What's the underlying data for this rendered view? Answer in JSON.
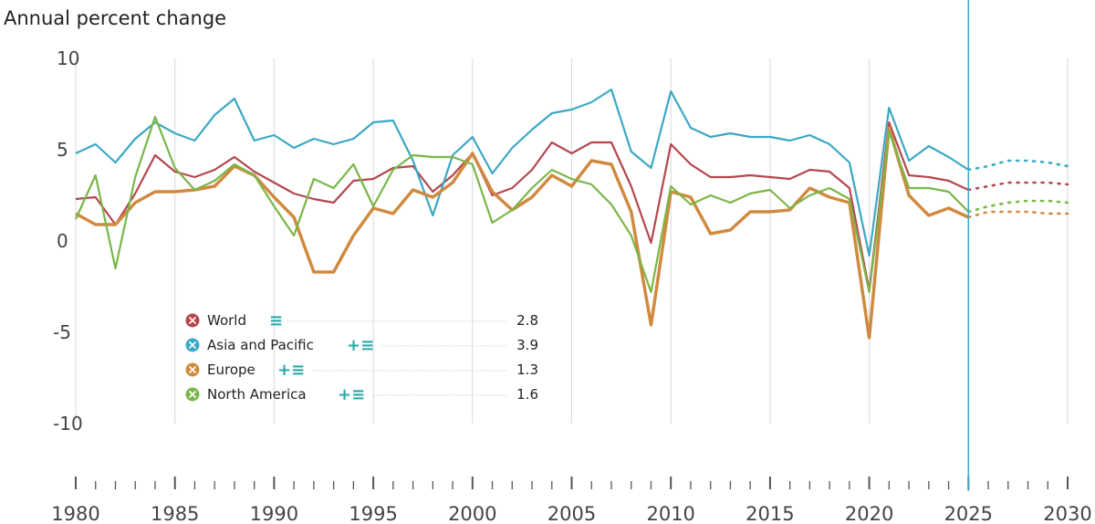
{
  "chart_data": {
    "type": "line",
    "ylabel": "Annual percent change",
    "ylim": [
      -10,
      10
    ],
    "yticks": [
      10,
      5,
      0,
      -5,
      -10
    ],
    "xlim": [
      1980,
      2030
    ],
    "xticks": [
      1980,
      1985,
      1990,
      1995,
      2000,
      2005,
      2010,
      2015,
      2020,
      2025,
      2030
    ],
    "projection_start": 2025,
    "grid": true,
    "legend": "bottom-left",
    "series": [
      {
        "name": "World",
        "color": "#b5464f",
        "value_label": "2.8",
        "tools": "≡",
        "x": [
          1980,
          1981,
          1982,
          1983,
          1984,
          1985,
          1986,
          1987,
          1988,
          1989,
          1990,
          1991,
          1992,
          1993,
          1994,
          1995,
          1996,
          1997,
          1998,
          1999,
          2000,
          2001,
          2002,
          2003,
          2004,
          2005,
          2006,
          2007,
          2008,
          2009,
          2010,
          2011,
          2012,
          2013,
          2014,
          2015,
          2016,
          2017,
          2018,
          2019,
          2020,
          2021,
          2022,
          2023,
          2024,
          2025,
          2026,
          2027,
          2028,
          2029,
          2030
        ],
        "y": [
          2.3,
          2.4,
          0.9,
          2.6,
          4.7,
          3.8,
          3.5,
          3.9,
          4.6,
          3.8,
          3.2,
          2.6,
          2.3,
          2.1,
          3.3,
          3.4,
          4.0,
          4.1,
          2.7,
          3.6,
          4.8,
          2.5,
          2.9,
          3.9,
          5.4,
          4.8,
          5.4,
          5.4,
          3.0,
          -0.1,
          5.3,
          4.2,
          3.5,
          3.5,
          3.6,
          3.5,
          3.4,
          3.9,
          3.8,
          2.9,
          -2.7,
          6.5,
          3.6,
          3.5,
          3.3,
          2.8,
          3.0,
          3.2,
          3.2,
          3.2,
          3.1
        ]
      },
      {
        "name": "Asia and Pacific",
        "color": "#3ba8c4",
        "value_label": "3.9",
        "tools": "+≡",
        "x": [
          1980,
          1981,
          1982,
          1983,
          1984,
          1985,
          1986,
          1987,
          1988,
          1989,
          1990,
          1991,
          1992,
          1993,
          1994,
          1995,
          1996,
          1997,
          1998,
          1999,
          2000,
          2001,
          2002,
          2003,
          2004,
          2005,
          2006,
          2007,
          2008,
          2009,
          2010,
          2011,
          2012,
          2013,
          2014,
          2015,
          2016,
          2017,
          2018,
          2019,
          2020,
          2021,
          2022,
          2023,
          2024,
          2025,
          2026,
          2027,
          2028,
          2029,
          2030
        ],
        "y": [
          4.8,
          5.3,
          4.3,
          5.6,
          6.5,
          5.9,
          5.5,
          6.9,
          7.8,
          5.5,
          5.8,
          5.1,
          5.6,
          5.3,
          5.6,
          6.5,
          6.6,
          4.4,
          1.4,
          4.7,
          5.7,
          3.7,
          5.1,
          6.1,
          7.0,
          7.2,
          7.6,
          8.3,
          4.9,
          4.0,
          8.2,
          6.2,
          5.7,
          5.9,
          5.7,
          5.7,
          5.5,
          5.8,
          5.3,
          4.3,
          -0.8,
          7.3,
          4.4,
          5.2,
          4.6,
          3.9,
          4.1,
          4.4,
          4.4,
          4.3,
          4.1
        ]
      },
      {
        "name": "Europe",
        "color": "#d08a3f",
        "value_label": "1.3",
        "tools": "+≡",
        "x": [
          1980,
          1981,
          1982,
          1983,
          1984,
          1985,
          1986,
          1987,
          1988,
          1989,
          1990,
          1991,
          1992,
          1993,
          1994,
          1995,
          1996,
          1997,
          1998,
          1999,
          2000,
          2001,
          2002,
          2003,
          2004,
          2005,
          2006,
          2007,
          2008,
          2009,
          2010,
          2011,
          2012,
          2013,
          2014,
          2015,
          2016,
          2017,
          2018,
          2019,
          2020,
          2021,
          2022,
          2023,
          2024,
          2025,
          2026,
          2027,
          2028,
          2029,
          2030
        ],
        "y": [
          1.5,
          0.9,
          0.9,
          2.1,
          2.7,
          2.7,
          2.8,
          3.0,
          4.1,
          3.6,
          2.4,
          1.3,
          -1.7,
          -1.7,
          0.3,
          1.8,
          1.5,
          2.8,
          2.4,
          3.2,
          4.8,
          2.7,
          1.7,
          2.4,
          3.6,
          3.0,
          4.4,
          4.2,
          1.6,
          -4.6,
          2.7,
          2.4,
          0.4,
          0.6,
          1.6,
          1.6,
          1.7,
          2.9,
          2.4,
          2.1,
          -5.3,
          6.2,
          2.5,
          1.4,
          1.8,
          1.3,
          1.6,
          1.6,
          1.6,
          1.5,
          1.5
        ]
      },
      {
        "name": "North America",
        "color": "#7ab648",
        "value_label": "1.6",
        "tools": "+≡",
        "x": [
          1980,
          1981,
          1982,
          1983,
          1984,
          1985,
          1986,
          1987,
          1988,
          1989,
          1990,
          1991,
          1992,
          1993,
          1994,
          1995,
          1996,
          1997,
          1998,
          1999,
          2000,
          2001,
          2002,
          2003,
          2004,
          2005,
          2006,
          2007,
          2008,
          2009,
          2010,
          2011,
          2012,
          2013,
          2014,
          2015,
          2016,
          2017,
          2018,
          2019,
          2020,
          2021,
          2022,
          2023,
          2024,
          2025,
          2026,
          2027,
          2028,
          2029,
          2030
        ],
        "y": [
          1.2,
          3.6,
          -1.5,
          3.5,
          6.8,
          4.0,
          2.8,
          3.3,
          4.2,
          3.6,
          1.9,
          0.3,
          3.4,
          2.9,
          4.2,
          1.9,
          3.9,
          4.7,
          4.6,
          4.6,
          4.2,
          1.0,
          1.7,
          2.9,
          3.9,
          3.4,
          3.1,
          2.0,
          0.3,
          -2.8,
          3.0,
          2.0,
          2.5,
          2.1,
          2.6,
          2.8,
          1.8,
          2.5,
          2.9,
          2.3,
          -2.8,
          6.0,
          2.9,
          2.9,
          2.7,
          1.6,
          1.9,
          2.1,
          2.2,
          2.2,
          2.1
        ]
      }
    ]
  }
}
